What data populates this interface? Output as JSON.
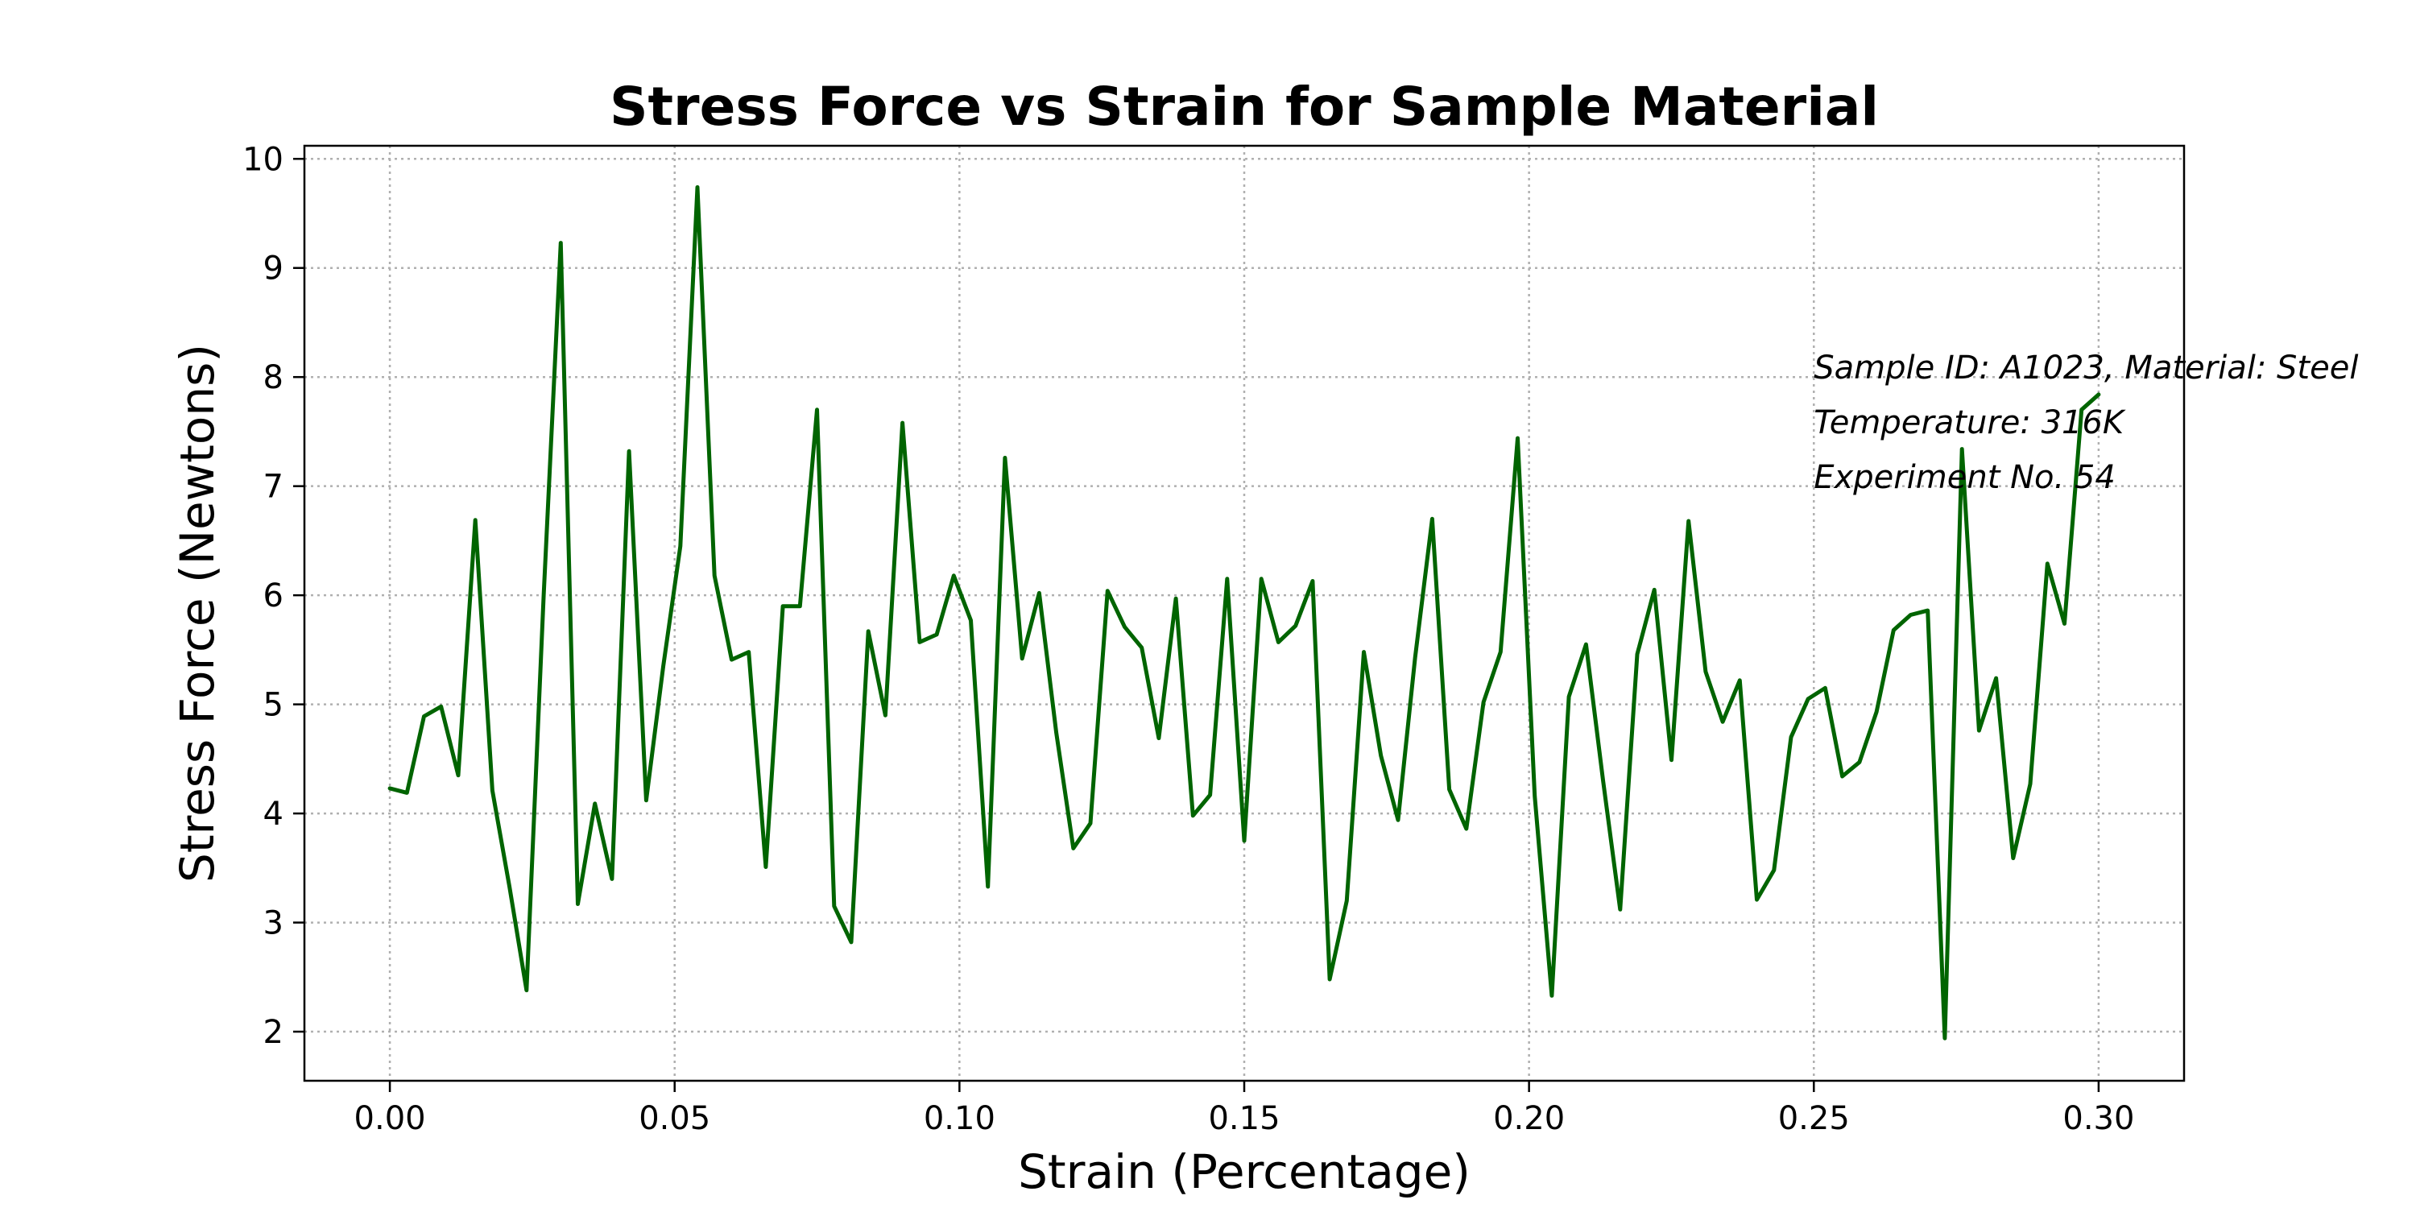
{
  "chart_data": {
    "type": "line",
    "title": "Stress Force vs Strain for Sample Material",
    "xlabel": "Strain (Percentage)",
    "ylabel": "Stress Force (Newtons)",
    "xlim": [
      -0.015,
      0.315
    ],
    "ylim": [
      1.55,
      10.12
    ],
    "xticks": [
      0.0,
      0.05,
      0.1,
      0.15,
      0.2,
      0.25,
      0.3
    ],
    "xtick_labels": [
      "0.00",
      "0.05",
      "0.10",
      "0.15",
      "0.20",
      "0.25",
      "0.30"
    ],
    "yticks": [
      2,
      3,
      4,
      5,
      6,
      7,
      8,
      9,
      10
    ],
    "ytick_labels": [
      "2",
      "3",
      "4",
      "5",
      "6",
      "7",
      "8",
      "9",
      "10"
    ],
    "grid": true,
    "line_color": "#006400",
    "annotations": [
      "Sample ID: A1023, Material: Steel",
      "Temperature: 316K",
      "Experiment No. 54"
    ],
    "series": [
      {
        "x": [
          0.0,
          0.003,
          0.006,
          0.009,
          0.012,
          0.015,
          0.018,
          0.021,
          0.024,
          0.027,
          0.03,
          0.033,
          0.036,
          0.039,
          0.042,
          0.045,
          0.048,
          0.051,
          0.054,
          0.057,
          0.06,
          0.063,
          0.066,
          0.069,
          0.072,
          0.075,
          0.078,
          0.081,
          0.084,
          0.087,
          0.09,
          0.093,
          0.096,
          0.099,
          0.102,
          0.105,
          0.108,
          0.111,
          0.114,
          0.117,
          0.12,
          0.123,
          0.126,
          0.129,
          0.132,
          0.135,
          0.138,
          0.141,
          0.144,
          0.147,
          0.15,
          0.153,
          0.156,
          0.159,
          0.162,
          0.165,
          0.168,
          0.171,
          0.174,
          0.177,
          0.18,
          0.183,
          0.186,
          0.189,
          0.192,
          0.195,
          0.198,
          0.201,
          0.204,
          0.207,
          0.21,
          0.213,
          0.216,
          0.219,
          0.222,
          0.225,
          0.228,
          0.231,
          0.234,
          0.237,
          0.24,
          0.243,
          0.246,
          0.249,
          0.252,
          0.255,
          0.258,
          0.261,
          0.264,
          0.267,
          0.27,
          0.273,
          0.276,
          0.279,
          0.282,
          0.285,
          0.288,
          0.291,
          0.294,
          0.297,
          0.3
        ],
        "values": [
          4.23,
          4.19,
          4.89,
          4.98,
          4.35,
          6.69,
          4.21,
          3.33,
          2.38,
          6.0,
          9.23,
          3.17,
          4.09,
          3.4,
          7.32,
          4.12,
          5.35,
          6.45,
          9.74,
          6.18,
          5.41,
          5.48,
          3.51,
          5.9,
          5.9,
          7.7,
          3.15,
          2.82,
          5.67,
          4.9,
          7.58,
          5.57,
          5.64,
          6.18,
          5.77,
          3.33,
          7.26,
          5.42,
          6.02,
          4.74,
          3.68,
          3.91,
          6.04,
          5.71,
          5.52,
          4.69,
          5.97,
          3.98,
          4.17,
          6.15,
          3.75,
          6.15,
          5.57,
          5.72,
          6.13,
          2.48,
          3.2,
          5.48,
          4.53,
          3.94,
          5.43,
          6.7,
          4.22,
          3.86,
          5.02,
          5.48,
          7.44,
          4.16,
          2.33,
          5.07,
          5.55,
          4.3,
          3.12,
          5.46,
          6.05,
          4.49,
          6.68,
          5.3,
          4.84,
          5.22,
          3.21,
          3.48,
          4.7,
          5.05,
          5.15,
          4.34,
          4.47,
          4.93,
          5.68,
          5.82,
          5.86,
          1.94,
          7.34,
          4.76,
          5.24,
          3.59,
          4.27,
          6.29,
          5.74,
          7.7,
          7.84
        ]
      }
    ]
  }
}
